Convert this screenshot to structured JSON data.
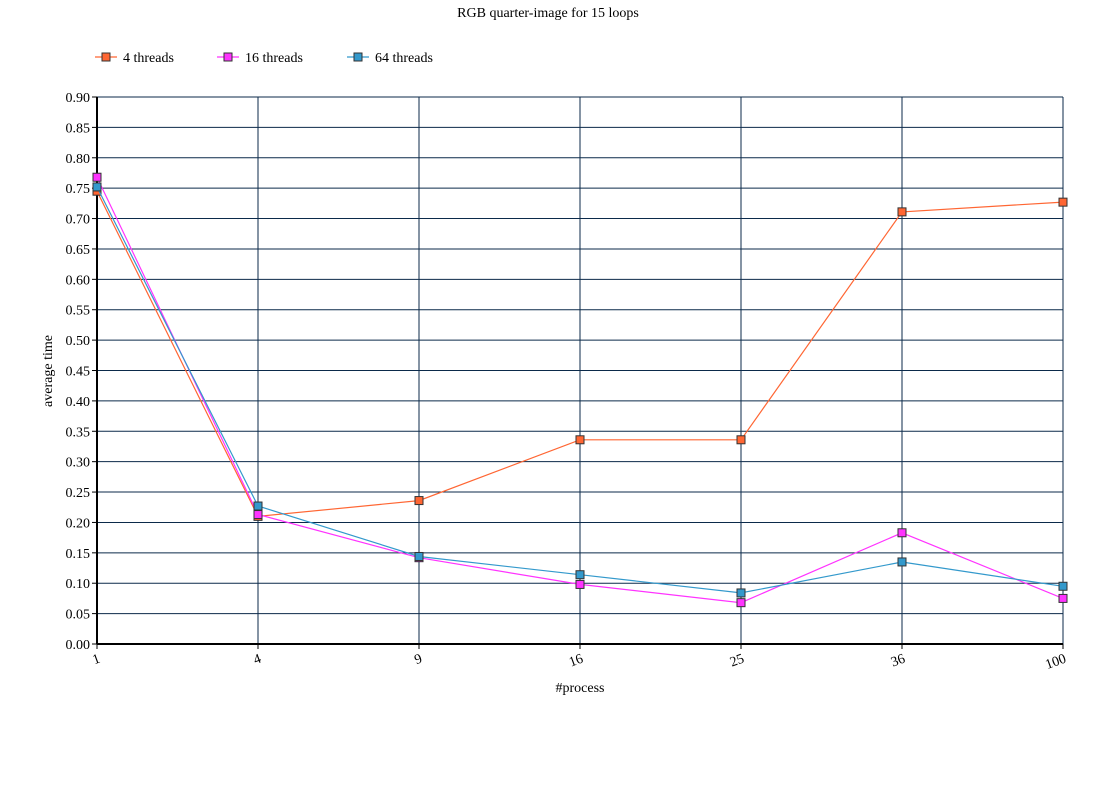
{
  "chart_data": {
    "type": "line",
    "title": "RGB quarter-image for 15 loops",
    "xlabel": "#process",
    "ylabel": "average time",
    "categories": [
      "1",
      "4",
      "9",
      "16",
      "25",
      "36",
      "100"
    ],
    "ylim": [
      0,
      0.9
    ],
    "y_ticks": [
      "0.00",
      "0.05",
      "0.10",
      "0.15",
      "0.20",
      "0.25",
      "0.30",
      "0.35",
      "0.40",
      "0.45",
      "0.50",
      "0.55",
      "0.60",
      "0.65",
      "0.70",
      "0.75",
      "0.80",
      "0.85",
      "0.90"
    ],
    "grid": true,
    "legend_position": "top-left",
    "series": [
      {
        "name": "4 threads",
        "color": "#ff6633",
        "values": [
          0.745,
          0.21,
          0.236,
          0.336,
          0.336,
          0.711,
          0.727
        ]
      },
      {
        "name": "16 threads",
        "color": "#ff33ff",
        "values": [
          0.768,
          0.213,
          0.142,
          0.098,
          0.068,
          0.183,
          0.075
        ]
      },
      {
        "name": "64 threads",
        "color": "#3399cc",
        "values": [
          0.752,
          0.227,
          0.144,
          0.114,
          0.084,
          0.135,
          0.095
        ]
      }
    ]
  }
}
